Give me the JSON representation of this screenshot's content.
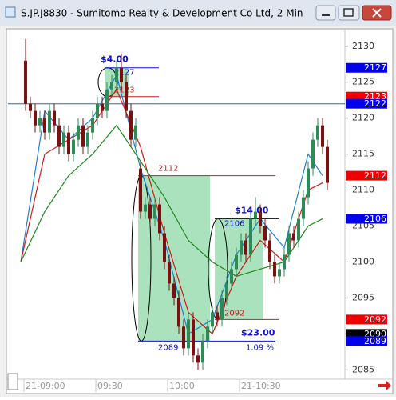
{
  "chart_data": {
    "type": "candlestick",
    "title": "S.JP.J8830 - Sumitomo Realty & Development Co Ltd, 2 Min",
    "categories": [
      "21-09:00",
      null,
      null,
      null,
      null,
      null,
      null,
      null,
      null,
      null,
      null,
      null,
      null,
      null,
      null,
      "09:30",
      null,
      null,
      null,
      null,
      null,
      null,
      null,
      null,
      null,
      null,
      null,
      null,
      null,
      null,
      "10:00",
      null,
      null,
      null,
      null,
      null,
      null,
      null,
      null,
      null,
      null,
      null,
      null,
      null,
      null,
      "21-10:30",
      null,
      null,
      null,
      null,
      null,
      null,
      null,
      null,
      null,
      null,
      null,
      null,
      null,
      null,
      null,
      null,
      null,
      null
    ],
    "open": [
      2128,
      2122,
      2121,
      2119,
      2120,
      2118,
      2121,
      2119,
      2116,
      2118,
      2115,
      2117,
      2119,
      2116,
      2118,
      2120,
      2122,
      2121,
      2124,
      2125,
      2127,
      2125,
      2121,
      2117,
      2113,
      2107,
      2108,
      2106,
      2108,
      2104,
      2100,
      2097,
      2095,
      2091,
      2088,
      2092,
      2087,
      2086,
      2089,
      2091,
      2093,
      2092,
      2095,
      2097,
      2099,
      2101,
      2103,
      2101,
      2106,
      2107,
      2105,
      2103,
      2100,
      2098,
      2099,
      2101,
      2104,
      2103,
      2106,
      2109,
      2113,
      2117,
      2119,
      2116
    ],
    "high": [
      2131,
      2123,
      2122,
      2121,
      2121,
      2122,
      2122,
      2120,
      2119,
      2119,
      2118,
      2120,
      2120,
      2119,
      2121,
      2123,
      2123,
      2125,
      2126,
      2128,
      2129,
      2126,
      2122,
      2120,
      2114,
      2109,
      2109,
      2109,
      2109,
      2105,
      2101,
      2098,
      2096,
      2092,
      2093,
      2093,
      2088,
      2090,
      2092,
      2094,
      2094,
      2096,
      2098,
      2100,
      2102,
      2104,
      2104,
      2107,
      2109,
      2108,
      2106,
      2104,
      2101,
      2100,
      2102,
      2105,
      2105,
      2107,
      2110,
      2114,
      2118,
      2120,
      2120,
      2117
    ],
    "low": [
      2121,
      2120,
      2118,
      2118,
      2117,
      2117,
      2118,
      2115,
      2115,
      2114,
      2114,
      2116,
      2115,
      2115,
      2117,
      2119,
      2120,
      2120,
      2123,
      2124,
      2124,
      2120,
      2116,
      2116,
      2106,
      2106,
      2105,
      2105,
      2103,
      2099,
      2096,
      2094,
      2090,
      2087,
      2087,
      2086,
      2085,
      2085,
      2088,
      2090,
      2091,
      2091,
      2094,
      2096,
      2098,
      2100,
      2100,
      2100,
      2105,
      2104,
      2102,
      2099,
      2097,
      2097,
      2098,
      2100,
      2102,
      2102,
      2105,
      2108,
      2112,
      2116,
      2115,
      2110
    ],
    "close": [
      2122,
      2121,
      2119,
      2120,
      2118,
      2121,
      2119,
      2116,
      2118,
      2115,
      2117,
      2119,
      2116,
      2118,
      2120,
      2122,
      2121,
      2124,
      2125,
      2127,
      2125,
      2121,
      2117,
      2119,
      2107,
      2108,
      2106,
      2108,
      2104,
      2100,
      2097,
      2095,
      2091,
      2088,
      2092,
      2087,
      2086,
      2089,
      2091,
      2093,
      2092,
      2095,
      2097,
      2099,
      2101,
      2103,
      2101,
      2106,
      2107,
      2105,
      2103,
      2100,
      2098,
      2099,
      2101,
      2104,
      2103,
      2106,
      2109,
      2113,
      2117,
      2119,
      2116,
      2111
    ],
    "up_color": "#2e8b57",
    "down_color": "#7a1010",
    "overlays": [
      {
        "color": "#1e7fd8",
        "x": [
          0,
          5,
          10,
          15,
          20,
          25,
          30,
          35,
          40,
          45,
          50,
          55,
          60,
          63
        ],
        "values": [
          2100,
          2121,
          2117,
          2120,
          2126,
          2113,
          2103,
          2090,
          2092,
          2101,
          2106,
          2102,
          2115,
          2112
        ]
      },
      {
        "color": "#d11a1a",
        "x": [
          0,
          5,
          10,
          15,
          20,
          25,
          30,
          35,
          40,
          45,
          50,
          55,
          60,
          63
        ],
        "values": [
          2100,
          2115,
          2117,
          2119,
          2124,
          2116,
          2104,
          2093,
          2090,
          2098,
          2103,
          2100,
          2110,
          2111
        ]
      },
      {
        "color": "#1e8a1e",
        "x": [
          0,
          5,
          10,
          15,
          20,
          25,
          30,
          35,
          40,
          45,
          50,
          55,
          60,
          63
        ],
        "values": [
          2100,
          2107,
          2112,
          2115,
          2119,
          2114,
          2109,
          2103,
          2100,
          2098,
          2099,
          2100,
          2105,
          2106
        ]
      }
    ],
    "ranges": [
      {
        "label": "$4.00",
        "high": 2127,
        "low": 2123
      },
      {
        "label": "$23.00",
        "high": 2112,
        "low": 2089,
        "percent": "1.09 %"
      },
      {
        "label": "$14.00",
        "high": 2106,
        "low": 2092
      }
    ],
    "last_line": 2122,
    "price_markers": [
      {
        "value": 2127,
        "color": "#0000ee"
      },
      {
        "value": 2123,
        "color": "#ee0000"
      },
      {
        "value": 2122,
        "color": "#0000ee"
      },
      {
        "value": 2112,
        "color": "#ee0000"
      },
      {
        "value": 2106,
        "color": "#0000ee"
      },
      {
        "value": 2092,
        "color": "#ee0000"
      },
      {
        "value": 2090,
        "color": "#000000"
      },
      {
        "value": 2089,
        "color": "#0000ee"
      }
    ],
    "ylim": [
      2083.7,
      2132.2
    ],
    "yticks": [
      2085,
      2090,
      2095,
      2100,
      2105,
      2110,
      2115,
      2120,
      2125,
      2130
    ]
  }
}
